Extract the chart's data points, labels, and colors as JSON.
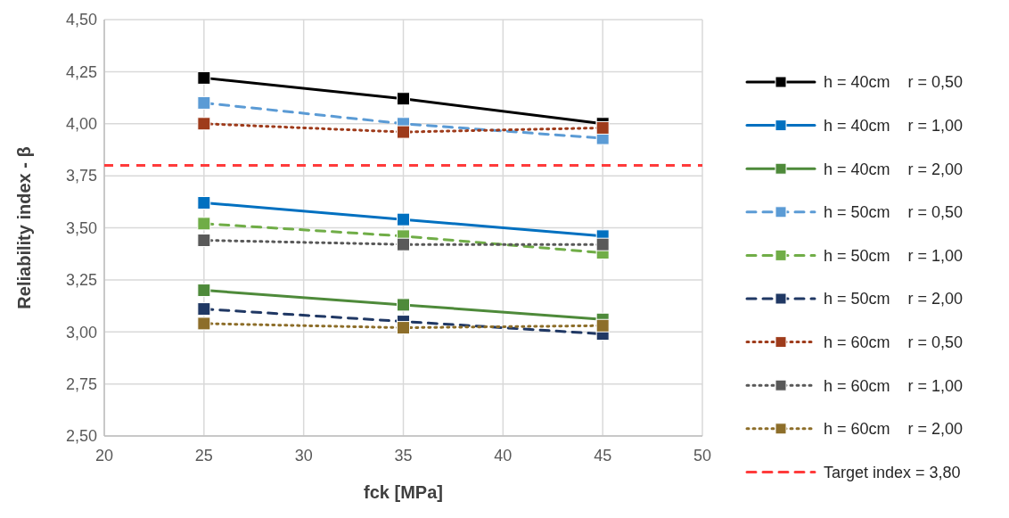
{
  "chart_data": {
    "type": "line",
    "xlabel": "fck [MPa]",
    "ylabel": "Reliability index - β",
    "x": [
      25,
      35,
      45
    ],
    "xlim": [
      20,
      50
    ],
    "xticks": [
      20,
      25,
      30,
      35,
      40,
      45,
      50
    ],
    "ylim": [
      2.5,
      4.5
    ],
    "yticks": [
      {
        "value": 2.5,
        "label": "2,50"
      },
      {
        "value": 2.75,
        "label": "2,75"
      },
      {
        "value": 3,
        "label": "3,00"
      },
      {
        "value": 3.25,
        "label": "3,25"
      },
      {
        "value": 3.5,
        "label": "3,50"
      },
      {
        "value": 3.75,
        "label": "3,75"
      },
      {
        "value": 4,
        "label": "4,00"
      },
      {
        "value": 4.25,
        "label": "4,25"
      },
      {
        "value": 4.5,
        "label": "4,50"
      }
    ],
    "grid": true,
    "legend": "right",
    "marker": "square",
    "series": [
      {
        "name": "h = 40cm    r = 0,50",
        "color": "#000000",
        "line_style": "solid",
        "values": [
          4.22,
          4.12,
          4.0
        ]
      },
      {
        "name": "h = 40cm    r = 1,00",
        "color": "#0070c0",
        "line_style": "solid",
        "values": [
          3.62,
          3.54,
          3.46
        ]
      },
      {
        "name": "h = 40cm    r = 2,00",
        "color": "#4e8a3a",
        "line_style": "solid",
        "values": [
          3.2,
          3.13,
          3.06
        ]
      },
      {
        "name": "h = 50cm    r = 0,50",
        "color": "#5b9bd5",
        "line_style": "dashed",
        "values": [
          4.1,
          4.0,
          3.93
        ]
      },
      {
        "name": "h = 50cm    r = 1,00",
        "color": "#70ad47",
        "line_style": "dashed",
        "values": [
          3.52,
          3.46,
          3.38
        ]
      },
      {
        "name": "h = 50cm    r = 2,00",
        "color": "#203864",
        "line_style": "dashed",
        "values": [
          3.11,
          3.05,
          2.99
        ]
      },
      {
        "name": "h = 60cm    r = 0,50",
        "color": "#9e3b1b",
        "line_style": "dotted",
        "values": [
          4.0,
          3.96,
          3.98
        ]
      },
      {
        "name": "h = 60cm    r = 1,00",
        "color": "#595959",
        "line_style": "dotted",
        "values": [
          3.44,
          3.42,
          3.42
        ]
      },
      {
        "name": "h = 60cm    r = 2,00",
        "color": "#8d6e2a",
        "line_style": "dotted",
        "values": [
          3.04,
          3.02,
          3.03
        ]
      }
    ],
    "ref_lines": [
      {
        "axis": "y",
        "value": 3.8,
        "label": "Target index = 3,80",
        "color": "#ff3b3b",
        "line_style": "dashed"
      }
    ]
  }
}
